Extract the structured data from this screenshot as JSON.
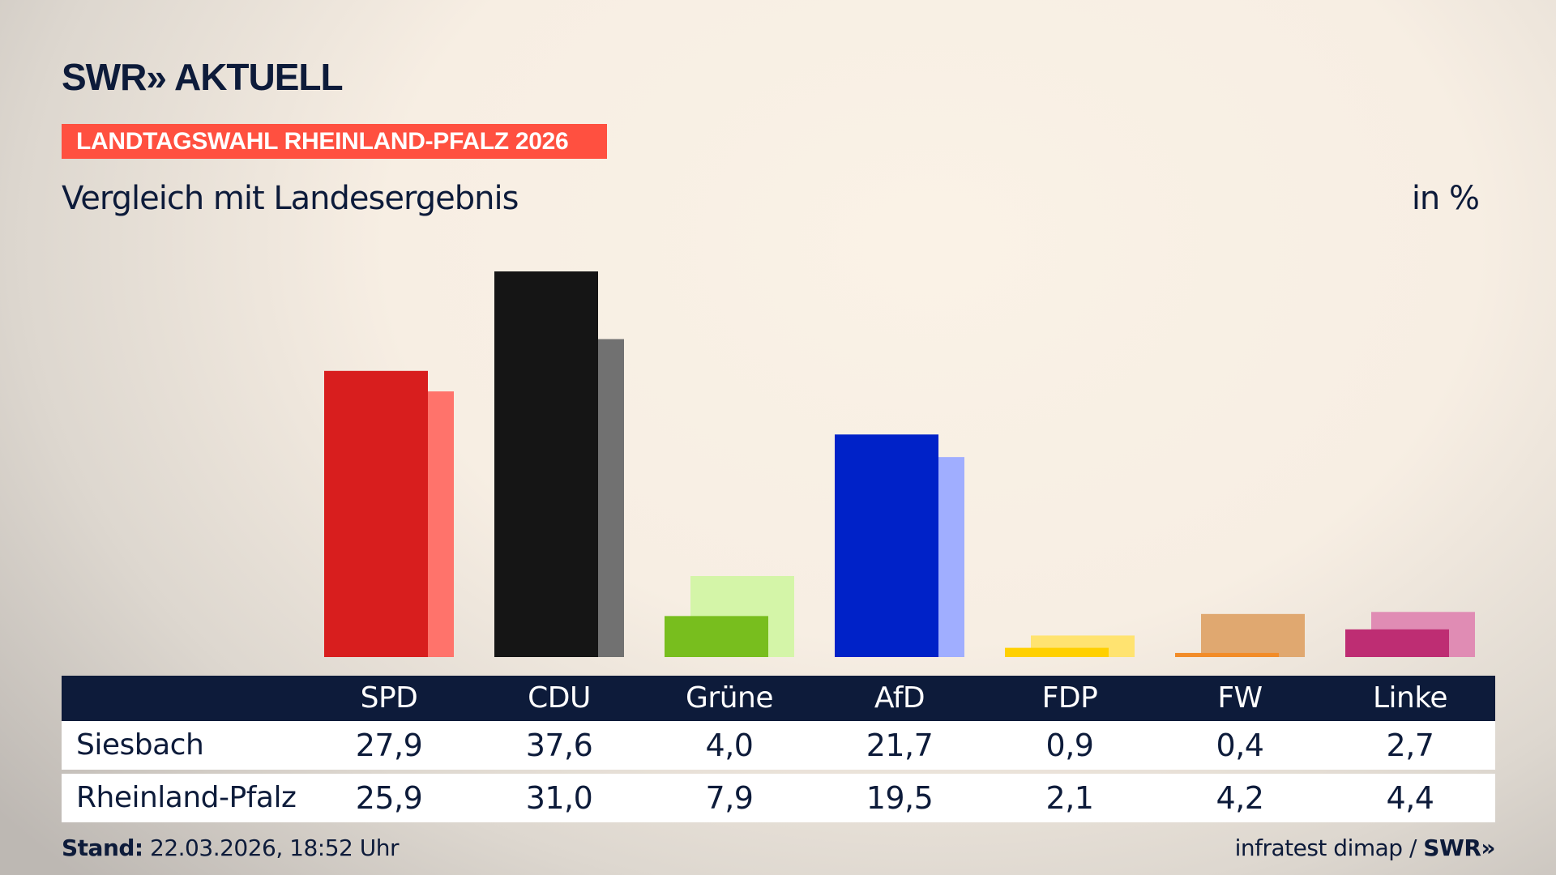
{
  "logo": "SWR» AKTUELL",
  "tag": "LANDTAGSWAHL RHEINLAND-PFALZ 2026",
  "subtitle": "Vergleich mit Landesergebnis",
  "unit": "in %",
  "chart_data": {
    "type": "bar",
    "categories": [
      "SPD",
      "CDU",
      "Grüne",
      "AfD",
      "FDP",
      "FW",
      "Linke"
    ],
    "series": [
      {
        "name": "Siesbach",
        "values": [
          27.9,
          37.6,
          4.0,
          21.7,
          0.9,
          0.4,
          2.7
        ],
        "display": [
          "27,9",
          "37,6",
          "4,0",
          "21,7",
          "0,9",
          "0,4",
          "2,7"
        ]
      },
      {
        "name": "Rheinland-Pfalz",
        "values": [
          25.9,
          31.0,
          7.9,
          19.5,
          2.1,
          4.2,
          4.4
        ],
        "display": [
          "25,9",
          "31,0",
          "7,9",
          "19,5",
          "2,1",
          "4,2",
          "4,4"
        ]
      }
    ],
    "colors_local": [
      "#d81e1e",
      "#151515",
      "#78be1e",
      "#0022c8",
      "#ffd000",
      "#f28c28",
      "#be2d73"
    ],
    "colors_state": [
      "#ff736b",
      "#717171",
      "#d4f5a8",
      "#a0aeff",
      "#ffe370",
      "#e0a870",
      "#e08cb4"
    ],
    "ylim": [
      0,
      37.6
    ],
    "grid": false
  },
  "footer": {
    "stand_label": "Stand:",
    "stand_value": "22.03.2026, 18:52 Uhr",
    "source": "infratest dimap / ",
    "source_logo": "SWR»"
  }
}
